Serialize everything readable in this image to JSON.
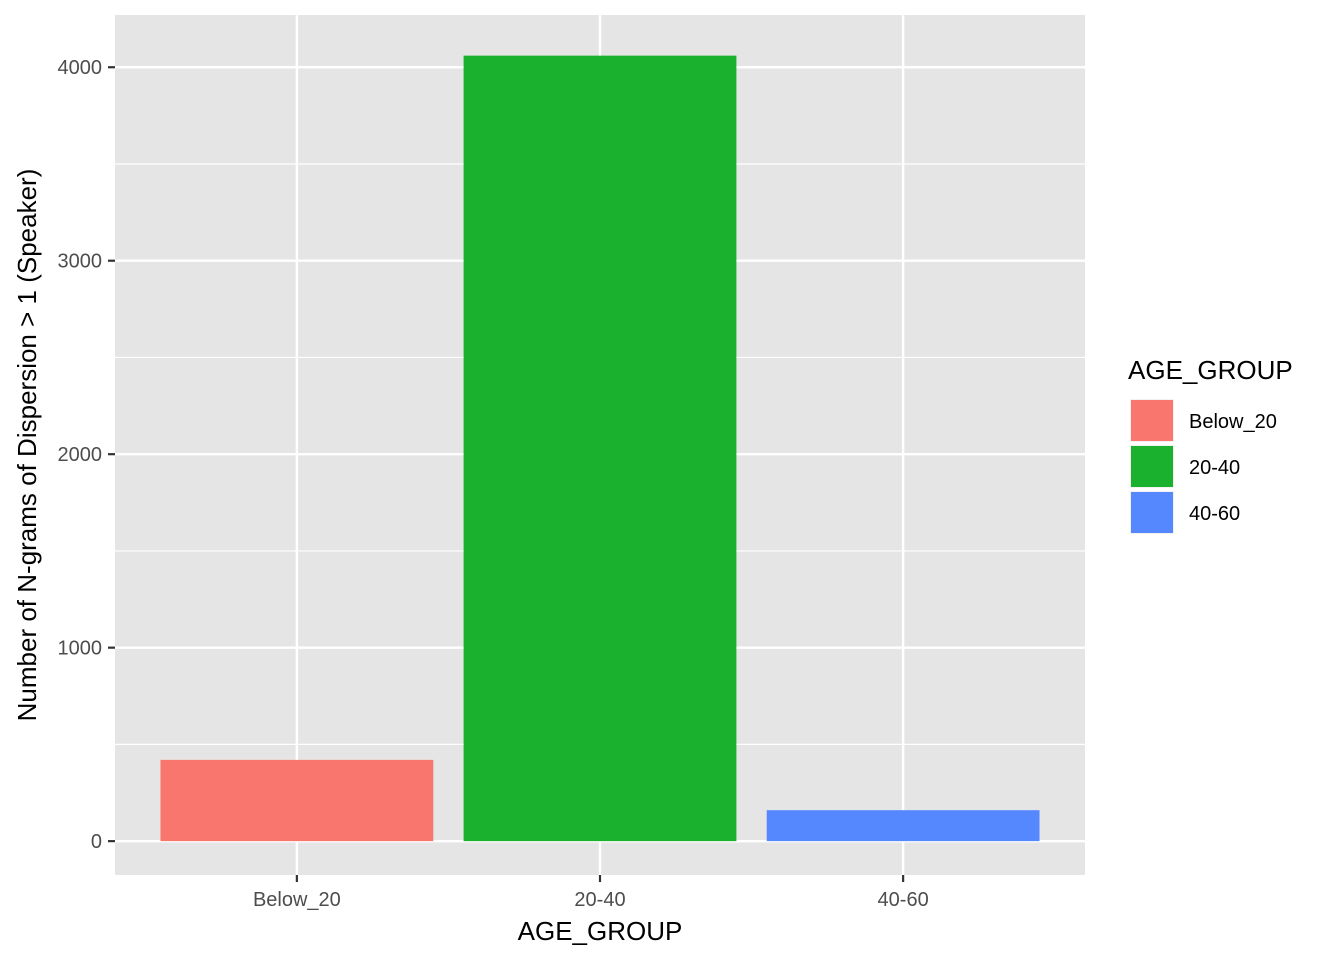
{
  "chart_data": {
    "type": "bar",
    "categories": [
      "Below_20",
      "20-40",
      "40-60"
    ],
    "values": [
      420,
      4060,
      160
    ],
    "colors": [
      "#F8766D",
      "#1AB12E",
      "#5588FF"
    ],
    "title": "",
    "xlabel": "AGE_GROUP",
    "ylabel": "Number of N-grams of Dispersion > 1 (Speaker)",
    "ylim": [
      -175,
      4270
    ],
    "yticks": [
      0,
      1000,
      2000,
      3000,
      4000
    ],
    "ytick_labels": [
      "0",
      "1000",
      "2000",
      "3000",
      "4000"
    ],
    "grid": true,
    "legend": {
      "title": "AGE_GROUP",
      "placement": "right",
      "entries": [
        "Below_20",
        "20-40",
        "40-60"
      ]
    },
    "panel_background": "#E5E5E5",
    "grid_color": "#FFFFFF"
  }
}
